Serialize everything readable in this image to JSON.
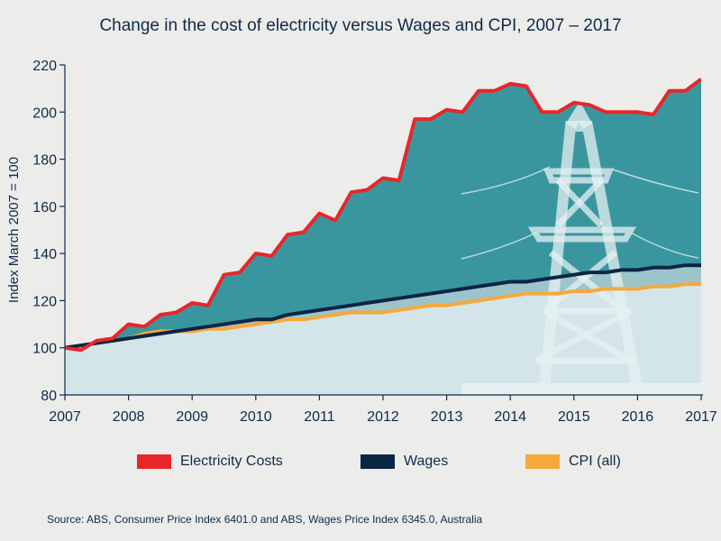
{
  "chart_data": {
    "type": "area",
    "title": "Change in the cost of electricity versus Wages and CPI, 2007 – 2017",
    "xlabel": "",
    "ylabel": "Index March 2007 = 100",
    "xlim": [
      2007,
      2017
    ],
    "ylim": [
      80,
      220
    ],
    "x_ticks": [
      "2007",
      "2008",
      "2009",
      "2010",
      "2011",
      "2012",
      "2013",
      "2014",
      "2015",
      "2016",
      "2017"
    ],
    "y_ticks": [
      "80",
      "100",
      "120",
      "140",
      "160",
      "180",
      "200",
      "220"
    ],
    "x": [
      2007.0,
      2007.25,
      2007.5,
      2007.75,
      2008.0,
      2008.25,
      2008.5,
      2008.75,
      2009.0,
      2009.25,
      2009.5,
      2009.75,
      2010.0,
      2010.25,
      2010.5,
      2010.75,
      2011.0,
      2011.25,
      2011.5,
      2011.75,
      2012.0,
      2012.25,
      2012.5,
      2012.75,
      2013.0,
      2013.25,
      2013.5,
      2013.75,
      2014.0,
      2014.25,
      2014.5,
      2014.75,
      2015.0,
      2015.25,
      2015.5,
      2015.75,
      2016.0,
      2016.25,
      2016.5,
      2016.75,
      2017.0
    ],
    "series": [
      {
        "name": "Electricity Costs",
        "color": "#e8262b",
        "values": [
          100,
          99,
          103,
          104,
          110,
          109,
          114,
          115,
          119,
          118,
          131,
          132,
          140,
          139,
          148,
          149,
          157,
          154,
          166,
          167,
          172,
          171,
          197,
          197,
          201,
          200,
          209,
          209,
          212,
          211,
          200,
          200,
          204,
          203,
          200,
          200,
          200,
          199,
          209,
          209,
          214
        ]
      },
      {
        "name": "Wages",
        "color": "#0b2545",
        "values": [
          100,
          101,
          102,
          103,
          104,
          105,
          106,
          107,
          108,
          109,
          110,
          111,
          112,
          112,
          114,
          115,
          116,
          117,
          118,
          119,
          120,
          121,
          122,
          123,
          124,
          125,
          126,
          127,
          128,
          128,
          129,
          130,
          131,
          132,
          132,
          133,
          133,
          134,
          134,
          135,
          135
        ]
      },
      {
        "name": "CPI (all)",
        "color": "#f5a93a",
        "values": [
          100,
          101,
          102,
          103,
          104,
          106,
          107,
          107,
          107,
          108,
          108,
          109,
          110,
          111,
          112,
          112,
          113,
          114,
          115,
          115,
          115,
          116,
          117,
          118,
          118,
          119,
          120,
          121,
          122,
          123,
          123,
          123,
          124,
          124,
          125,
          125,
          125,
          126,
          126,
          127,
          127
        ]
      }
    ],
    "fill_colors": {
      "electricity": "#3a969e",
      "wages": "#9ec4cb",
      "cpi": "#d4e5ea"
    },
    "grid": false,
    "legend_position": "bottom"
  },
  "legend": [
    {
      "label": "Electricity Costs",
      "color": "#e8262b"
    },
    {
      "label": "Wages",
      "color": "#0b2545"
    },
    {
      "label": "CPI (all)",
      "color": "#f5a93a"
    }
  ],
  "source_note": "Source: ABS, Consumer Price Index 6401.0 and ABS, Wages Price Index 6345.0, Australia"
}
